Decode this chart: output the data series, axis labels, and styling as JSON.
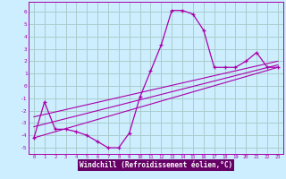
{
  "xlabel": "Windchill (Refroidissement éolien,°C)",
  "background_color": "#cceeff",
  "grid_color": "#aacccc",
  "line_color": "#aa00aa",
  "label_bg_color": "#660066",
  "label_fg_color": "#ffffff",
  "xlim": [
    -0.5,
    23.5
  ],
  "ylim": [
    -5.5,
    6.8
  ],
  "yticks": [
    -5,
    -4,
    -3,
    -2,
    -1,
    0,
    1,
    2,
    3,
    4,
    5,
    6
  ],
  "xticks": [
    0,
    1,
    2,
    3,
    4,
    5,
    6,
    7,
    8,
    9,
    10,
    11,
    12,
    13,
    14,
    15,
    16,
    17,
    18,
    19,
    20,
    21,
    22,
    23
  ],
  "main_line_x": [
    0,
    1,
    2,
    3,
    4,
    5,
    6,
    7,
    8,
    9,
    10,
    11,
    12,
    13,
    14,
    15,
    16,
    17,
    18,
    19,
    20,
    21,
    22,
    23
  ],
  "main_line_y": [
    -4.2,
    -1.3,
    -3.5,
    -3.5,
    -3.7,
    -4.0,
    -4.5,
    -5.0,
    -5.0,
    -3.8,
    -0.9,
    1.2,
    3.3,
    6.1,
    6.1,
    5.8,
    4.5,
    1.5,
    1.5,
    1.5,
    2.0,
    2.7,
    1.5,
    1.5
  ],
  "reg_line1_x": [
    0,
    23
  ],
  "reg_line1_y": [
    -4.2,
    1.5
  ],
  "reg_line2_x": [
    0,
    23
  ],
  "reg_line2_y": [
    -3.3,
    1.7
  ],
  "reg_line3_x": [
    0,
    23
  ],
  "reg_line3_y": [
    -2.5,
    2.0
  ]
}
